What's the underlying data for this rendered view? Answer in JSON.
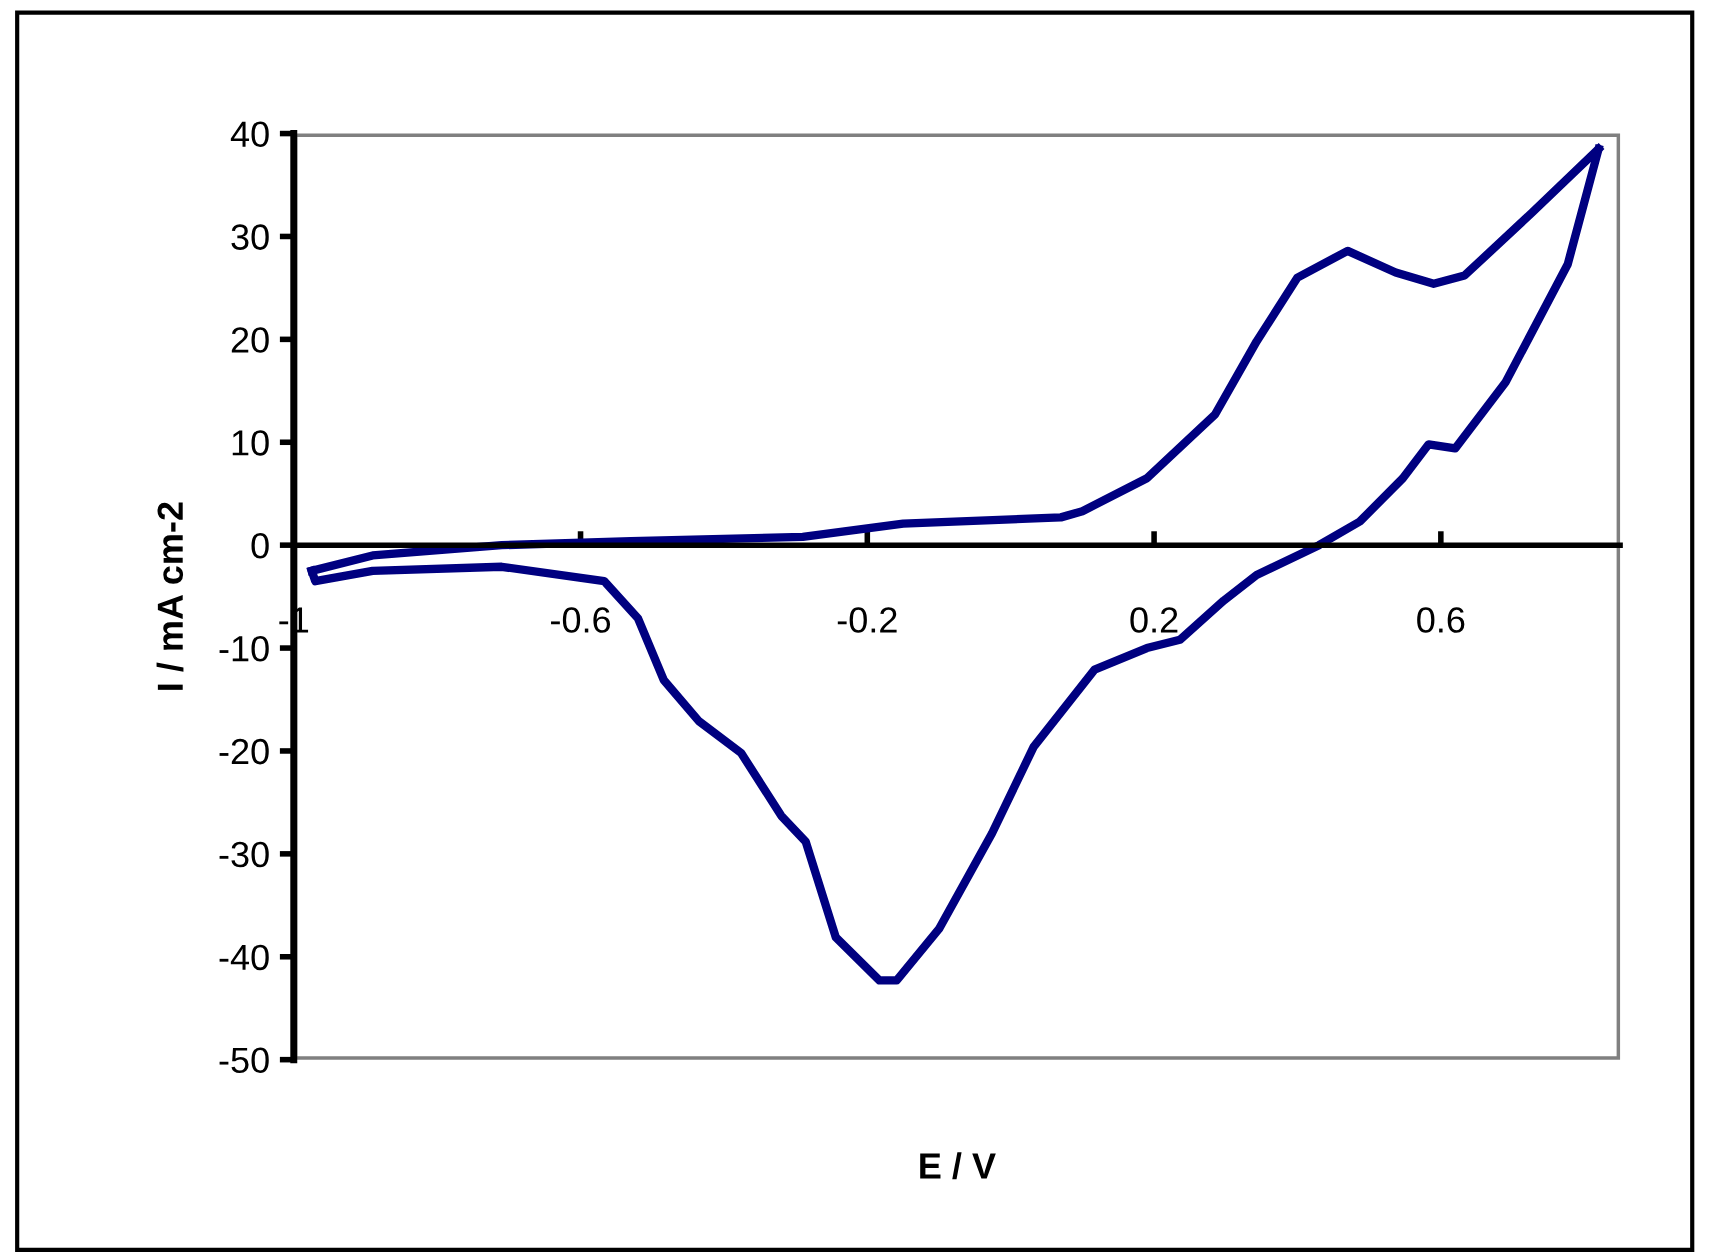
{
  "chart_data": {
    "type": "line",
    "xlabel": "E / V",
    "ylabel": "I / mA cm-2",
    "xlim": [
      -1,
      0.85
    ],
    "ylim": [
      -50,
      40
    ],
    "xticks": [
      {
        "value": -1,
        "label": "-1"
      },
      {
        "value": -0.6,
        "label": "-0.6"
      },
      {
        "value": -0.2,
        "label": "-0.2"
      },
      {
        "value": 0.2,
        "label": "0.2"
      },
      {
        "value": 0.6,
        "label": "0.6"
      }
    ],
    "yticks": [
      {
        "value": -50,
        "label": "-50"
      },
      {
        "value": -40,
        "label": "-40"
      },
      {
        "value": -30,
        "label": "-30"
      },
      {
        "value": -20,
        "label": "-20"
      },
      {
        "value": -10,
        "label": "-10"
      },
      0,
      10,
      20,
      30,
      40
    ],
    "grid": false,
    "legend": false,
    "marker": "none",
    "line_style": "solid",
    "series": [
      {
        "color": "#000080",
        "x": [
          -0.975,
          -0.89,
          -0.71,
          -0.53,
          -0.29,
          -0.15,
          0.07,
          0.1,
          0.19,
          0.285,
          0.343,
          0.4,
          0.47,
          0.537,
          0.59,
          0.633,
          0.727,
          0.82
        ],
        "values": [
          -2.5,
          -1.0,
          0,
          0.4,
          0.8,
          2.1,
          2.7,
          3.3,
          6.5,
          12.7,
          19.8,
          26,
          28.6,
          26.5,
          25.4,
          26.2,
          32.3,
          38.5
        ]
      },
      {
        "color": "#000080",
        "x": [
          0.82,
          0.777,
          0.69,
          0.62,
          0.583,
          0.547,
          0.487,
          0.43,
          0.343,
          0.297,
          0.236,
          0.19,
          0.117,
          0.032,
          -0.026,
          -0.1,
          -0.159,
          -0.183,
          -0.244,
          -0.286,
          -0.32,
          -0.376,
          -0.435,
          -0.484,
          -0.52,
          -0.567,
          -0.71,
          -0.89,
          -0.97,
          -0.975
        ],
        "values": [
          38.5,
          27.3,
          15.8,
          9.4,
          9.8,
          6.5,
          2.3,
          0,
          -2.9,
          -5.4,
          -9.2,
          -10,
          -12.1,
          -19.6,
          -28,
          -37.3,
          -42.3,
          -42.3,
          -38.1,
          -28.8,
          -26.3,
          -20.2,
          -17.1,
          -13.1,
          -7.1,
          -3.5,
          -2.1,
          -2.5,
          -3.5,
          -2.5
        ]
      }
    ]
  }
}
